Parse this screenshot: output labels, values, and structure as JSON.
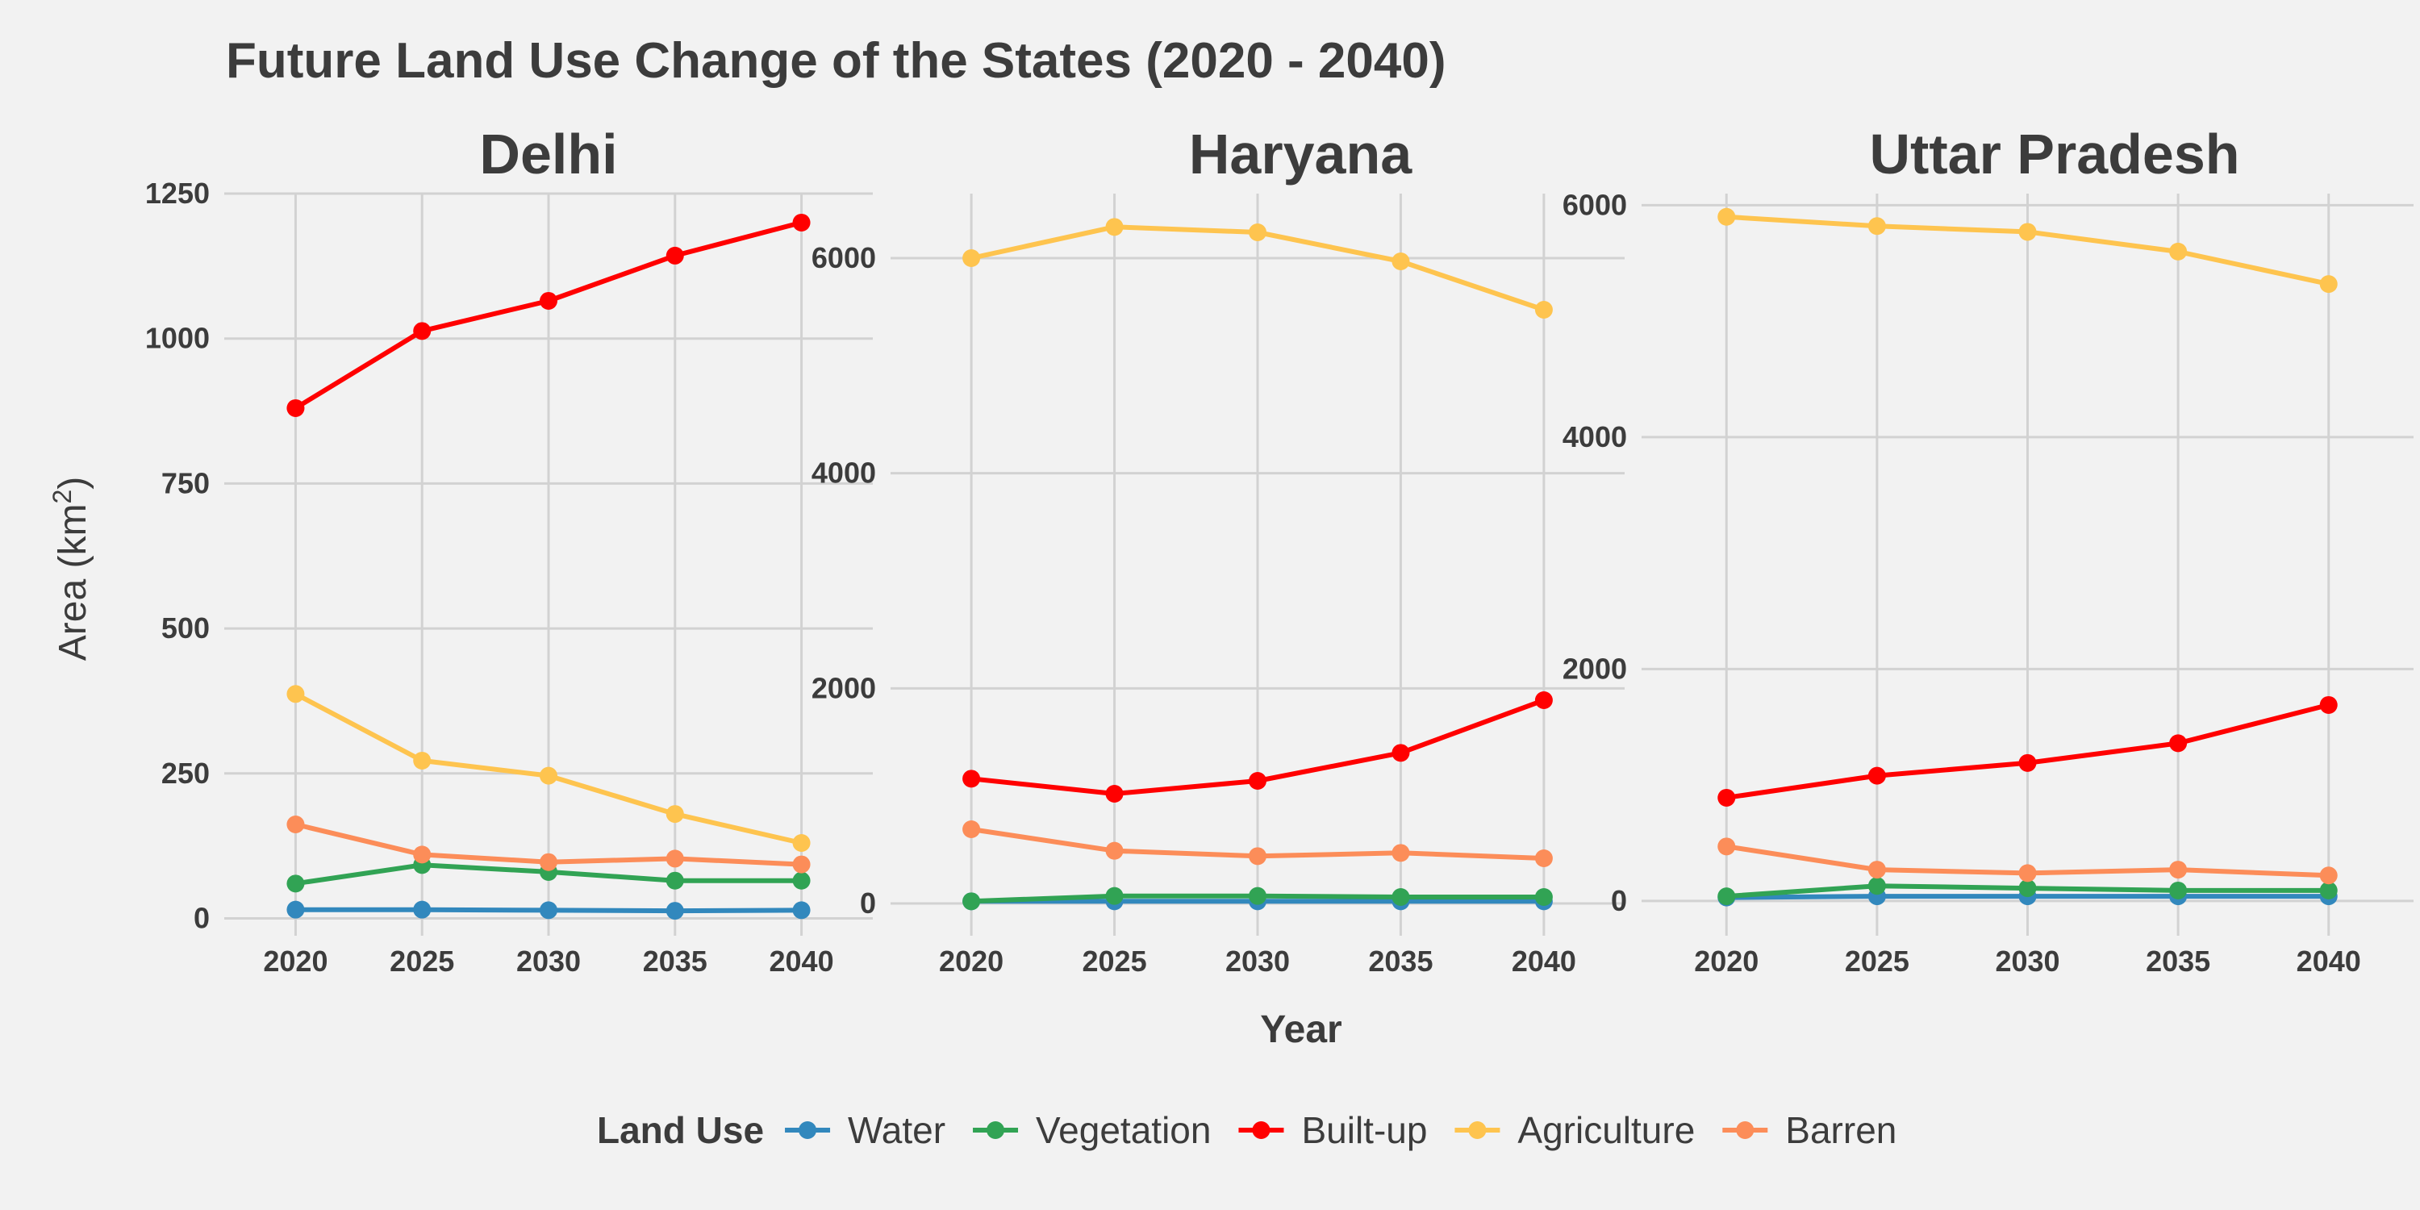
{
  "chart_data": {
    "type": "line",
    "title": "Future Land Use Change of the States (2020 - 2040)",
    "xlabel": "Year",
    "ylabel": "Area (km",
    "ylabel_sup": "2",
    "ylabel_close": ")",
    "x": [
      2020,
      2025,
      2030,
      2035,
      2040
    ],
    "legend": {
      "title": "Land Use",
      "position": "bottom",
      "items": [
        {
          "name": "Water",
          "color": "#3288bd"
        },
        {
          "name": "Vegetation",
          "color": "#31a354"
        },
        {
          "name": "Built-up",
          "color": "#ff0000"
        },
        {
          "name": "Agriculture",
          "color": "#fec44f"
        },
        {
          "name": "Barren",
          "color": "#fc8d59"
        }
      ]
    },
    "panels": [
      {
        "name": "Delhi",
        "ylim": [
          -30,
          1250
        ],
        "yticks": [
          0,
          250,
          500,
          750,
          1000,
          1250
        ],
        "series": [
          {
            "name": "Water",
            "color": "#3288bd",
            "values": [
              15,
              15,
              14,
              13,
              14
            ]
          },
          {
            "name": "Vegetation",
            "color": "#31a354",
            "values": [
              60,
              92,
              80,
              65,
              65
            ]
          },
          {
            "name": "Built-up",
            "color": "#ff0000",
            "values": [
              880,
              1013,
              1065,
              1143,
              1200
            ]
          },
          {
            "name": "Agriculture",
            "color": "#fec44f",
            "values": [
              387,
              272,
              246,
              180,
              130
            ]
          },
          {
            "name": "Barren",
            "color": "#fc8d59",
            "values": [
              162,
              110,
              97,
              103,
              93
            ]
          }
        ]
      },
      {
        "name": "Haryana",
        "ylim": [
          -300,
          6600
        ],
        "yticks": [
          0,
          2000,
          4000,
          6000
        ],
        "series": [
          {
            "name": "Water",
            "color": "#3288bd",
            "values": [
              20,
              20,
              20,
              20,
              20
            ]
          },
          {
            "name": "Vegetation",
            "color": "#31a354",
            "values": [
              20,
              70,
              70,
              60,
              60
            ]
          },
          {
            "name": "Built-up",
            "color": "#ff0000",
            "values": [
              1160,
              1020,
              1140,
              1400,
              1890
            ]
          },
          {
            "name": "Agriculture",
            "color": "#fec44f",
            "values": [
              6000,
              6290,
              6240,
              5970,
              5520
            ]
          },
          {
            "name": "Barren",
            "color": "#fc8d59",
            "values": [
              690,
              490,
              440,
              470,
              420
            ]
          }
        ]
      },
      {
        "name": "Uttar Pradesh",
        "ylim": [
          -300,
          6100
        ],
        "yticks": [
          0,
          2000,
          4000,
          6000
        ],
        "series": [
          {
            "name": "Water",
            "color": "#3288bd",
            "values": [
              30,
              40,
              40,
              40,
              40
            ]
          },
          {
            "name": "Vegetation",
            "color": "#31a354",
            "values": [
              40,
              130,
              110,
              90,
              90
            ]
          },
          {
            "name": "Built-up",
            "color": "#ff0000",
            "values": [
              890,
              1080,
              1190,
              1360,
              1690
            ]
          },
          {
            "name": "Agriculture",
            "color": "#fec44f",
            "values": [
              5900,
              5820,
              5770,
              5600,
              5320
            ]
          },
          {
            "name": "Barren",
            "color": "#fc8d59",
            "values": [
              470,
              270,
              240,
              270,
              220
            ]
          }
        ]
      }
    ],
    "grid": true
  }
}
